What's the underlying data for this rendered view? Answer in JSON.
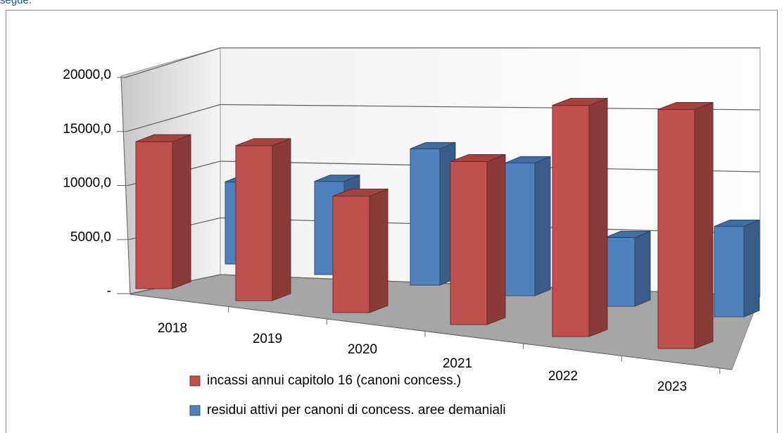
{
  "header": "segue.",
  "chart_data": {
    "type": "bar3d",
    "categories": [
      "2018",
      "2019",
      "2020",
      "2021",
      "2022",
      "2023"
    ],
    "series": [
      {
        "name": "incassi annui capitolo 16 (canoni concess.)",
        "color": "#c0504d",
        "values": [
          13600,
          13800,
          10000,
          13500,
          18500,
          18500
        ]
      },
      {
        "name": "residui attivi per canoni di concess. aree demaniali",
        "color": "#4f81bd",
        "values": [
          7600,
          8300,
          11700,
          11000,
          5500,
          7000
        ]
      }
    ],
    "ylim": [
      0,
      20000
    ],
    "yticks": [
      {
        "value": 0,
        "label": "-"
      },
      {
        "value": 5000,
        "label": "5000,0"
      },
      {
        "value": 10000,
        "label": "10000,0"
      },
      {
        "value": 15000,
        "label": "15000,0"
      },
      {
        "value": 20000,
        "label": "20000,0"
      }
    ],
    "grid": true,
    "legend": "bottom"
  }
}
